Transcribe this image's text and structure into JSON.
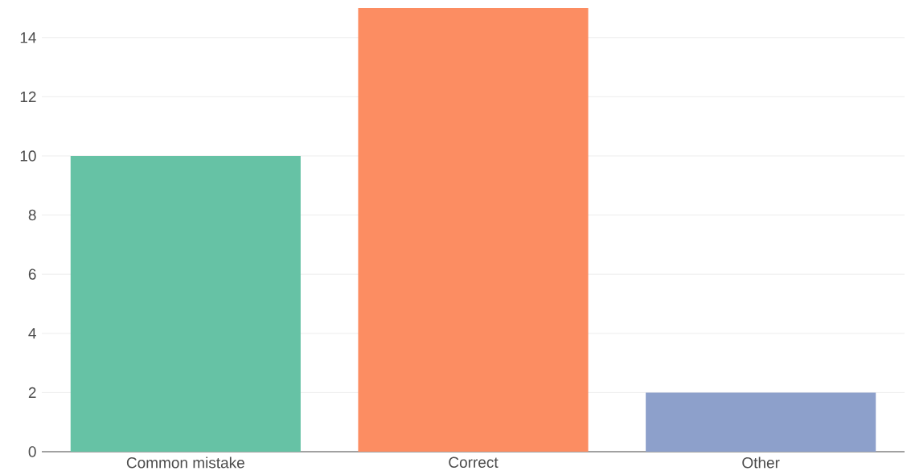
{
  "chart_data": {
    "type": "bar",
    "categories": [
      "Common mistake",
      "Correct",
      "Other"
    ],
    "values": [
      10,
      15,
      2
    ],
    "colors": [
      "#66c2a5",
      "#fc8d62",
      "#8da0cb"
    ],
    "ylim": [
      0,
      15
    ],
    "yticks": [
      0,
      2,
      4,
      6,
      8,
      10,
      12,
      14
    ],
    "grid": "y"
  }
}
